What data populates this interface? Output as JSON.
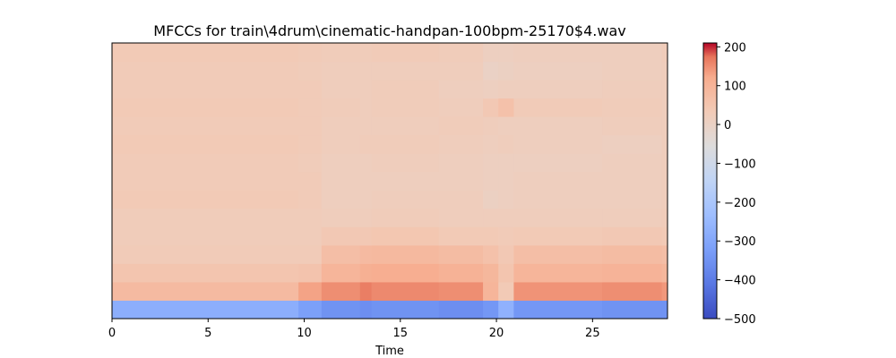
{
  "chart_data": {
    "type": "heatmap",
    "title": "MFCCs for train\\4drum\\cinematic-handpan-100bpm-25170$4.wav",
    "xlabel": "Time",
    "ylabel": "",
    "x_range": [
      0,
      28.9
    ],
    "x_ticks": [
      0,
      5,
      10,
      15,
      20,
      25
    ],
    "x_tick_labels": [
      "0",
      "5",
      "10",
      "15",
      "20",
      "25"
    ],
    "y_ticks_visible": false,
    "n_coefficients": 15,
    "time_segments": [
      0,
      9.7,
      10.9,
      12.9,
      13.5,
      17.0,
      19.3,
      20.1,
      20.9,
      25.5,
      28.6,
      28.9
    ],
    "coefficient_values": [
      [
        -280,
        -320,
        -350,
        -360,
        -350,
        -360,
        -340,
        -270,
        -340,
        -350,
        -350
      ],
      [
        80,
        130,
        150,
        165,
        155,
        150,
        95,
        35,
        145,
        150,
        140
      ],
      [
        50,
        55,
        95,
        110,
        115,
        105,
        90,
        50,
        95,
        100,
        90
      ],
      [
        30,
        30,
        70,
        80,
        85,
        75,
        60,
        40,
        70,
        75,
        70
      ],
      [
        25,
        25,
        40,
        40,
        45,
        35,
        35,
        30,
        35,
        40,
        35
      ],
      [
        25,
        25,
        20,
        20,
        25,
        20,
        20,
        20,
        20,
        20,
        25
      ],
      [
        35,
        30,
        15,
        15,
        20,
        20,
        5,
        10,
        15,
        15,
        20
      ],
      [
        30,
        30,
        15,
        15,
        15,
        15,
        10,
        10,
        15,
        15,
        20
      ],
      [
        30,
        25,
        15,
        15,
        20,
        15,
        10,
        10,
        10,
        15,
        20
      ],
      [
        35,
        30,
        20,
        25,
        25,
        20,
        15,
        20,
        15,
        10,
        20
      ],
      [
        30,
        30,
        20,
        20,
        20,
        25,
        20,
        15,
        15,
        20,
        20
      ],
      [
        35,
        30,
        25,
        20,
        25,
        20,
        40,
        60,
        30,
        25,
        20
      ],
      [
        30,
        30,
        20,
        20,
        25,
        15,
        10,
        15,
        15,
        20,
        20
      ],
      [
        30,
        25,
        20,
        20,
        20,
        20,
        0,
        5,
        10,
        15,
        20
      ],
      [
        35,
        30,
        25,
        25,
        30,
        25,
        10,
        10,
        15,
        15,
        25
      ]
    ],
    "colorbar": {
      "colormap": "coolwarm",
      "range": [
        -500,
        210
      ],
      "ticks": [
        200,
        100,
        0,
        -100,
        -200,
        -300,
        -400,
        -500
      ],
      "tick_labels": [
        "200",
        "100",
        "0",
        "−100",
        "−200",
        "−300",
        "−400",
        "−500"
      ]
    }
  }
}
